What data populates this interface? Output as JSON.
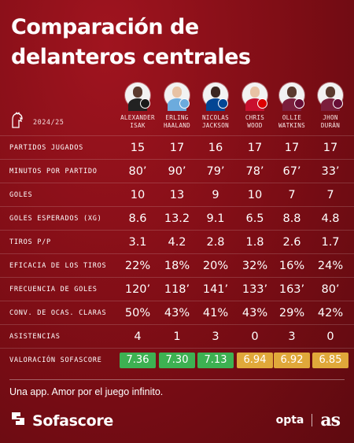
{
  "title": {
    "line1": "Comparación de",
    "line2": "delanteros centrales"
  },
  "league": {
    "icon": "premier-league-lion-icon",
    "season": "2024/25"
  },
  "players": [
    {
      "name": "ALEXANDER\nISAK",
      "badge_color": "#1a1a1a"
    },
    {
      "name": "ERLING\nHAALAND",
      "badge_color": "#6cabdd"
    },
    {
      "name": "NICOLAS\nJACKSON",
      "badge_color": "#034694"
    },
    {
      "name": "CHRIS\nWOOD",
      "badge_color": "#dd0000"
    },
    {
      "name": "OLLIE\nWATKINS",
      "badge_color": "#670e36"
    },
    {
      "name": "JHON\nDURÁN",
      "badge_color": "#670e36"
    }
  ],
  "stats": [
    {
      "label": "PARTIDOS JUGADOS",
      "values": [
        "15",
        "17",
        "16",
        "17",
        "17",
        "17"
      ]
    },
    {
      "label": "MINUTOS POR PARTIDO",
      "values": [
        "80’",
        "90’",
        "79’",
        "78’",
        "67’",
        "33’"
      ]
    },
    {
      "label": "GOLES",
      "values": [
        "10",
        "13",
        "9",
        "10",
        "7",
        "7"
      ]
    },
    {
      "label": "GOLES ESPERADOS (XG)",
      "values": [
        "8.6",
        "13.2",
        "9.1",
        "6.5",
        "8.8",
        "4.8"
      ]
    },
    {
      "label": "TIROS P/P",
      "values": [
        "3.1",
        "4.2",
        "2.8",
        "1.8",
        "2.6",
        "1.7"
      ]
    },
    {
      "label": "EFICACIA DE LOS TIROS",
      "values": [
        "22%",
        "18%",
        "20%",
        "32%",
        "16%",
        "24%"
      ]
    },
    {
      "label": "FRECUENCIA DE GOLES",
      "values": [
        "120’",
        "118’",
        "141’",
        "133’",
        "163’",
        "80’"
      ]
    },
    {
      "label": "CONV. DE OCAS. CLARAS",
      "values": [
        "50%",
        "43%",
        "41%",
        "43%",
        "29%",
        "42%"
      ]
    },
    {
      "label": "ASISTENCIAS",
      "values": [
        "4",
        "1",
        "3",
        "0",
        "3",
        "0"
      ]
    }
  ],
  "rating": {
    "label": "VALORACIÓN SOFASCORE",
    "values": [
      "7.36",
      "7.30",
      "7.13",
      "6.94",
      "6.92",
      "6.85"
    ],
    "colors": [
      "#3db152",
      "#3db152",
      "#3db152",
      "#e0a83a",
      "#e0a83a",
      "#e0a83a"
    ]
  },
  "footer": {
    "tagline": "Una app. Amor por el juego infinito.",
    "brand": "Sofascore",
    "partner1": "opta",
    "partner2": "as"
  }
}
